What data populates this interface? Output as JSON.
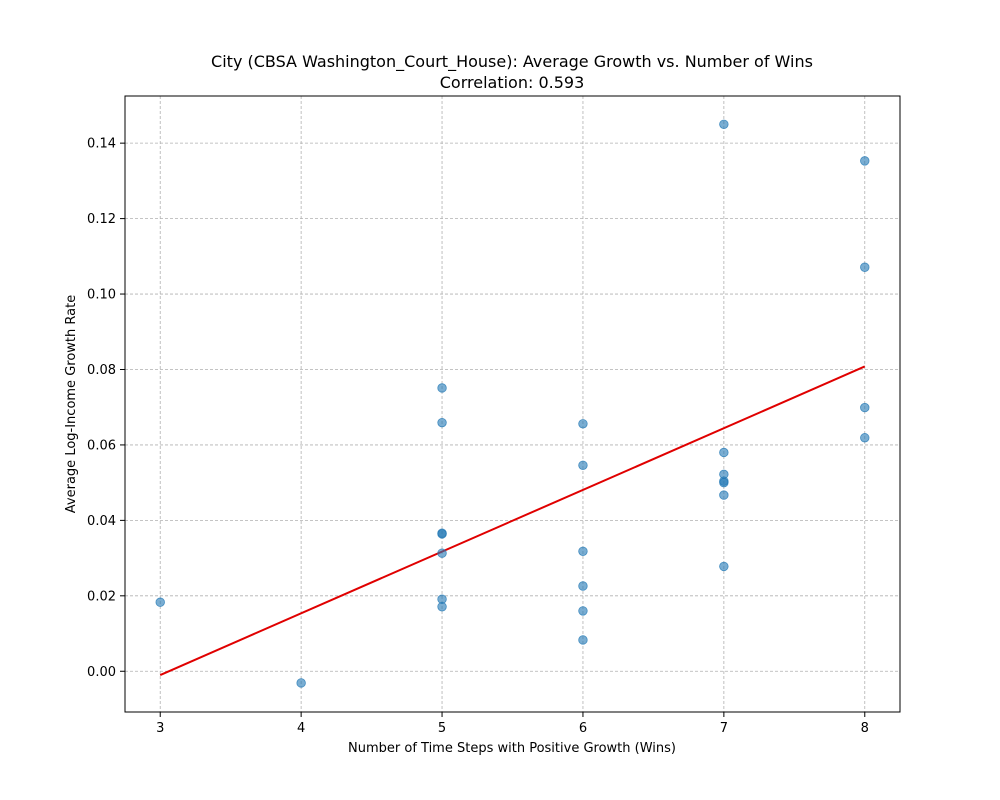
{
  "chart_data": {
    "type": "scatter",
    "title": "City (CBSA Washington_Court_House): Average Growth vs. Number of Wins",
    "subtitle": "Correlation: 0.593",
    "xlabel": "Number of Time Steps with Positive Growth (Wins)",
    "ylabel": "Average Log-Income Growth Rate",
    "xlim": [
      2.75,
      8.25
    ],
    "ylim": [
      -0.0108,
      0.1525
    ],
    "xticks": [
      3,
      4,
      5,
      6,
      7,
      8
    ],
    "yticks": [
      0.0,
      0.02,
      0.04,
      0.06,
      0.08,
      0.1,
      0.12,
      0.14
    ],
    "ytick_labels": [
      "0.00",
      "0.02",
      "0.04",
      "0.06",
      "0.08",
      "0.10",
      "0.12",
      "0.14"
    ],
    "grid": true,
    "point_color": "#1f77b4",
    "trend_color": "#e00000",
    "points": [
      {
        "x": 3,
        "y": 0.0183
      },
      {
        "x": 4,
        "y": -0.0031
      },
      {
        "x": 5,
        "y": 0.0751
      },
      {
        "x": 5,
        "y": 0.0659
      },
      {
        "x": 5,
        "y": 0.0366
      },
      {
        "x": 5,
        "y": 0.0364
      },
      {
        "x": 5,
        "y": 0.0313
      },
      {
        "x": 5,
        "y": 0.0191
      },
      {
        "x": 5,
        "y": 0.0171
      },
      {
        "x": 6,
        "y": 0.0656
      },
      {
        "x": 6,
        "y": 0.0546
      },
      {
        "x": 6,
        "y": 0.0318
      },
      {
        "x": 6,
        "y": 0.0226
      },
      {
        "x": 6,
        "y": 0.016
      },
      {
        "x": 6,
        "y": 0.0083
      },
      {
        "x": 7,
        "y": 0.145
      },
      {
        "x": 7,
        "y": 0.058
      },
      {
        "x": 7,
        "y": 0.0522
      },
      {
        "x": 7,
        "y": 0.0504
      },
      {
        "x": 7,
        "y": 0.05
      },
      {
        "x": 7,
        "y": 0.0467
      },
      {
        "x": 7,
        "y": 0.0278
      },
      {
        "x": 8,
        "y": 0.1353
      },
      {
        "x": 8,
        "y": 0.1071
      },
      {
        "x": 8,
        "y": 0.0699
      },
      {
        "x": 8,
        "y": 0.0619
      }
    ],
    "trendline": {
      "x": [
        3,
        8
      ],
      "y": [
        -0.001,
        0.0808
      ]
    }
  }
}
